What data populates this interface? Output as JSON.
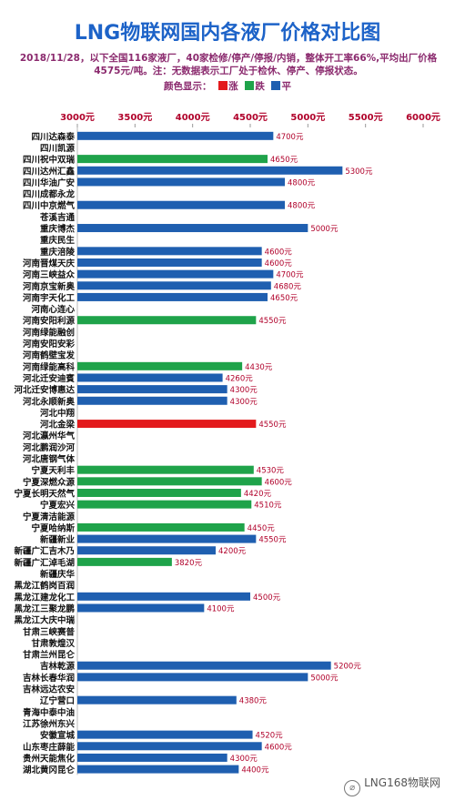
{
  "title": "LNG物联网国内各液厂价格对比图",
  "subtitle": "2018/11/28，以下全国116家液厂，40家检修/停产/停报/内销，整体开工率66%,平均出厂价格4575元/吨。注：无数据表示工厂处于检休、停产、停报状态。",
  "legend": {
    "prefix": "颜色显示：",
    "items": [
      {
        "label": "涨",
        "color": "#e31a1c"
      },
      {
        "label": "跌",
        "color": "#1fa34a"
      },
      {
        "label": "平",
        "color": "#1f5fb0"
      }
    ]
  },
  "watermark": "LNG168物联网",
  "colors": {
    "up": "#e31a1c",
    "down": "#1fa34a",
    "flat": "#1f5fb0",
    "axis_text": "#b0002a"
  },
  "chart_data": {
    "type": "bar",
    "orientation": "horizontal",
    "xlim": [
      3000,
      6000
    ],
    "xticks": [
      "3000元",
      "3500元",
      "4000元",
      "4500元",
      "5000元",
      "5500元",
      "6000元"
    ],
    "value_suffix": "元",
    "categories": [
      "四川达森泰",
      "四川凯源",
      "四川祝中双瑞",
      "四川达州汇鑫",
      "四川华油广安",
      "四川成都永龙",
      "四川中京燃气",
      "苍溪吉通",
      "重庆博杰",
      "重庆民生",
      "重庆涪陵",
      "河南晋煤天庆",
      "河南三峡益众",
      "河南京宝新奥",
      "河南宇天化工",
      "河南心连心",
      "河南安阳利源",
      "河南绿能融创",
      "河南安阳安彩",
      "河南鹤壁宝发",
      "河南绿能高科",
      "河北迁安迪賓",
      "河北迁安博惠达",
      "河北永顺新奥",
      "河北中翔",
      "河北金梁",
      "河北瀛州华气",
      "河北鹏润沙河",
      "河北唐钢气体",
      "宁夏天利丰",
      "宁夏深燃众源",
      "宁夏长明天然气",
      "宁夏宏兴",
      "宁夏清洁能源",
      "宁夏哈纳斯",
      "新疆新业",
      "新疆广汇吉木乃",
      "新疆广汇淖毛湖",
      "新疆庆华",
      "黑龙江鹤岗百润",
      "黑龙江建龙化工",
      "黑龙江三聚龙鹏",
      "黑龙江大庆中瑞",
      "甘肃三峡赛普",
      "甘肃敦煌汉",
      "甘肃兰州昆仑",
      "吉林乾源",
      "吉林长春华润",
      "吉林远达农安",
      "辽宁营口",
      "青海中泰中油",
      "江苏徐州东兴",
      "安徽宣城",
      "山东枣庄薛能",
      "贵州天能焦化",
      "湖北黄冈昆仑"
    ],
    "values": [
      4700,
      null,
      4650,
      5300,
      4800,
      null,
      4800,
      null,
      5000,
      null,
      4600,
      4600,
      4700,
      4680,
      4650,
      null,
      4550,
      null,
      null,
      null,
      4430,
      4260,
      4300,
      4300,
      null,
      4550,
      null,
      null,
      null,
      4530,
      4600,
      4420,
      4510,
      null,
      4450,
      4550,
      4200,
      3820,
      null,
      null,
      4500,
      4100,
      null,
      null,
      null,
      null,
      5200,
      5000,
      null,
      4380,
      null,
      null,
      4520,
      4600,
      4300,
      4400
    ],
    "trend": [
      "flat",
      "flat",
      "down",
      "flat",
      "flat",
      "flat",
      "flat",
      "flat",
      "flat",
      "flat",
      "flat",
      "flat",
      "flat",
      "flat",
      "flat",
      "flat",
      "down",
      "flat",
      "flat",
      "flat",
      "down",
      "flat",
      "flat",
      "flat",
      "flat",
      "up",
      "flat",
      "flat",
      "flat",
      "down",
      "down",
      "down",
      "down",
      "flat",
      "down",
      "flat",
      "flat",
      "down",
      "flat",
      "flat",
      "flat",
      "flat",
      "flat",
      "flat",
      "flat",
      "flat",
      "flat",
      "flat",
      "flat",
      "flat",
      "flat",
      "flat",
      "flat",
      "flat",
      "flat",
      "flat"
    ]
  }
}
